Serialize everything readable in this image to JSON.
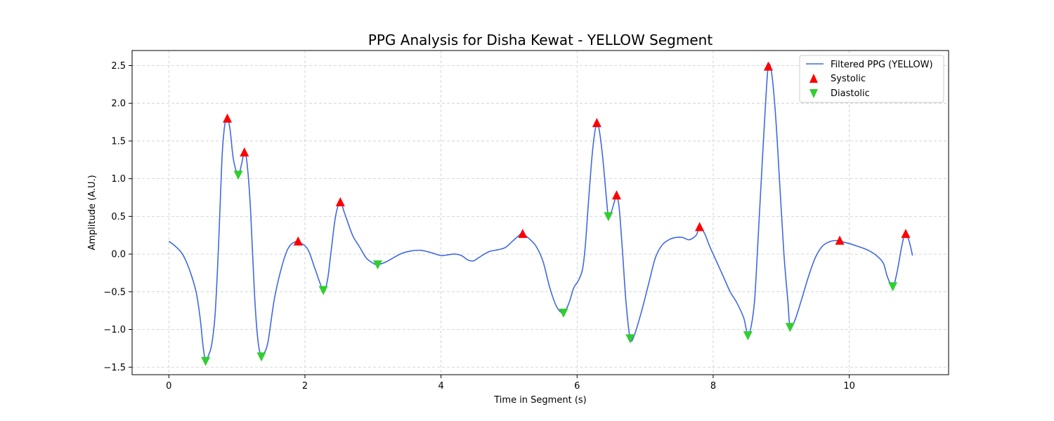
{
  "chart_data": {
    "type": "line",
    "title": "PPG Analysis for Disha Kewat - YELLOW Segment",
    "xlabel": "Time in Segment (s)",
    "ylabel": "Amplitude (A.U.)",
    "xlim": [
      -0.54,
      11.46
    ],
    "ylim": [
      -1.6,
      2.7
    ],
    "xticks": [
      0,
      2,
      4,
      6,
      8,
      10
    ],
    "yticks": [
      -1.5,
      -1.0,
      -0.5,
      0.0,
      0.5,
      1.0,
      1.5,
      2.0,
      2.5
    ],
    "xtick_labels": [
      "0",
      "2",
      "4",
      "6",
      "8",
      "10"
    ],
    "ytick_labels": [
      "−1.5",
      "−1.0",
      "−0.5",
      "0.0",
      "0.5",
      "1.0",
      "1.5",
      "2.0",
      "2.5"
    ],
    "grid": true,
    "legend_position": "top-right",
    "colors": {
      "line": "#4169e1",
      "systolic": "#ff0000",
      "diastolic": "#32cd32"
    },
    "series": [
      {
        "name": "Filtered PPG (YELLOW)",
        "kind": "line",
        "points": [
          [
            0.0,
            0.17
          ],
          [
            0.1,
            0.1
          ],
          [
            0.2,
            0.0
          ],
          [
            0.3,
            -0.2
          ],
          [
            0.4,
            -0.5
          ],
          [
            0.46,
            -0.85
          ],
          [
            0.5,
            -1.2
          ],
          [
            0.54,
            -1.42
          ],
          [
            0.58,
            -1.35
          ],
          [
            0.63,
            -1.2
          ],
          [
            0.68,
            -0.8
          ],
          [
            0.73,
            0.1
          ],
          [
            0.78,
            1.25
          ],
          [
            0.82,
            1.7
          ],
          [
            0.86,
            1.8
          ],
          [
            0.9,
            1.65
          ],
          [
            0.95,
            1.25
          ],
          [
            1.02,
            1.05
          ],
          [
            1.07,
            1.2
          ],
          [
            1.11,
            1.35
          ],
          [
            1.15,
            1.2
          ],
          [
            1.2,
            0.6
          ],
          [
            1.26,
            -0.55
          ],
          [
            1.31,
            -1.15
          ],
          [
            1.36,
            -1.36
          ],
          [
            1.41,
            -1.3
          ],
          [
            1.46,
            -1.15
          ],
          [
            1.55,
            -0.6
          ],
          [
            1.65,
            -0.2
          ],
          [
            1.75,
            0.07
          ],
          [
            1.85,
            0.16
          ],
          [
            1.95,
            0.14
          ],
          [
            2.05,
            0.05
          ],
          [
            2.15,
            -0.2
          ],
          [
            2.27,
            -0.48
          ],
          [
            2.33,
            -0.35
          ],
          [
            2.38,
            0.0
          ],
          [
            2.45,
            0.5
          ],
          [
            2.52,
            0.69
          ],
          [
            2.58,
            0.55
          ],
          [
            2.7,
            0.25
          ],
          [
            2.8,
            0.1
          ],
          [
            2.9,
            -0.05
          ],
          [
            3.0,
            -0.12
          ],
          [
            3.07,
            -0.14
          ],
          [
            3.2,
            -0.1
          ],
          [
            3.4,
            0.0
          ],
          [
            3.55,
            0.04
          ],
          [
            3.7,
            0.05
          ],
          [
            3.85,
            0.02
          ],
          [
            4.0,
            -0.02
          ],
          [
            4.1,
            -0.01
          ],
          [
            4.2,
            0.0
          ],
          [
            4.3,
            -0.02
          ],
          [
            4.4,
            -0.08
          ],
          [
            4.48,
            -0.09
          ],
          [
            4.55,
            -0.05
          ],
          [
            4.7,
            0.03
          ],
          [
            4.85,
            0.06
          ],
          [
            4.95,
            0.09
          ],
          [
            5.05,
            0.17
          ],
          [
            5.15,
            0.25
          ],
          [
            5.2,
            0.27
          ],
          [
            5.3,
            0.2
          ],
          [
            5.4,
            0.1
          ],
          [
            5.5,
            -0.1
          ],
          [
            5.6,
            -0.45
          ],
          [
            5.7,
            -0.7
          ],
          [
            5.8,
            -0.78
          ],
          [
            5.88,
            -0.65
          ],
          [
            5.95,
            -0.45
          ],
          [
            6.02,
            -0.35
          ],
          [
            6.08,
            -0.2
          ],
          [
            6.12,
            0.1
          ],
          [
            6.16,
            0.6
          ],
          [
            6.21,
            1.2
          ],
          [
            6.25,
            1.55
          ],
          [
            6.29,
            1.74
          ],
          [
            6.33,
            1.62
          ],
          [
            6.38,
            1.25
          ],
          [
            6.43,
            0.75
          ],
          [
            6.46,
            0.5
          ],
          [
            6.5,
            0.55
          ],
          [
            6.55,
            0.7
          ],
          [
            6.58,
            0.78
          ],
          [
            6.62,
            0.6
          ],
          [
            6.67,
            0.0
          ],
          [
            6.72,
            -0.65
          ],
          [
            6.78,
            -1.12
          ],
          [
            6.84,
            -1.08
          ],
          [
            6.95,
            -0.75
          ],
          [
            7.05,
            -0.4
          ],
          [
            7.15,
            -0.05
          ],
          [
            7.25,
            0.12
          ],
          [
            7.35,
            0.19
          ],
          [
            7.45,
            0.22
          ],
          [
            7.55,
            0.22
          ],
          [
            7.65,
            0.19
          ],
          [
            7.75,
            0.25
          ],
          [
            7.8,
            0.35
          ],
          [
            7.87,
            0.28
          ],
          [
            7.95,
            0.1
          ],
          [
            8.05,
            -0.1
          ],
          [
            8.15,
            -0.3
          ],
          [
            8.25,
            -0.5
          ],
          [
            8.35,
            -0.65
          ],
          [
            8.45,
            -0.85
          ],
          [
            8.51,
            -1.08
          ],
          [
            8.56,
            -0.95
          ],
          [
            8.61,
            -0.6
          ],
          [
            8.66,
            0.2
          ],
          [
            8.72,
            1.2
          ],
          [
            8.77,
            2.0
          ],
          [
            8.81,
            2.49
          ],
          [
            8.86,
            2.4
          ],
          [
            8.92,
            1.8
          ],
          [
            8.98,
            0.9
          ],
          [
            9.04,
            0.0
          ],
          [
            9.1,
            -0.65
          ],
          [
            9.13,
            -0.97
          ],
          [
            9.2,
            -0.88
          ],
          [
            9.3,
            -0.6
          ],
          [
            9.4,
            -0.3
          ],
          [
            9.5,
            -0.05
          ],
          [
            9.6,
            0.1
          ],
          [
            9.7,
            0.16
          ],
          [
            9.8,
            0.18
          ],
          [
            9.86,
            0.17
          ],
          [
            10.0,
            0.14
          ],
          [
            10.1,
            0.11
          ],
          [
            10.2,
            0.08
          ],
          [
            10.3,
            0.04
          ],
          [
            10.4,
            -0.02
          ],
          [
            10.5,
            -0.12
          ],
          [
            10.56,
            -0.3
          ],
          [
            10.64,
            -0.43
          ],
          [
            10.7,
            -0.25
          ],
          [
            10.76,
            0.05
          ],
          [
            10.8,
            0.22
          ],
          [
            10.83,
            0.27
          ],
          [
            10.87,
            0.2
          ],
          [
            10.9,
            0.1
          ],
          [
            10.93,
            -0.02
          ]
        ]
      },
      {
        "name": "Systolic",
        "kind": "marker-up",
        "points": [
          [
            0.86,
            1.8
          ],
          [
            1.11,
            1.35
          ],
          [
            1.9,
            0.17
          ],
          [
            2.52,
            0.69
          ],
          [
            5.2,
            0.27
          ],
          [
            6.29,
            1.74
          ],
          [
            6.58,
            0.78
          ],
          [
            7.8,
            0.36
          ],
          [
            8.81,
            2.49
          ],
          [
            9.86,
            0.18
          ],
          [
            10.83,
            0.27
          ]
        ]
      },
      {
        "name": "Diastolic",
        "kind": "marker-down",
        "points": [
          [
            0.54,
            -1.42
          ],
          [
            1.02,
            1.05
          ],
          [
            1.36,
            -1.36
          ],
          [
            2.27,
            -0.48
          ],
          [
            3.07,
            -0.14
          ],
          [
            5.8,
            -0.78
          ],
          [
            6.46,
            0.5
          ],
          [
            6.78,
            -1.12
          ],
          [
            8.51,
            -1.08
          ],
          [
            9.13,
            -0.97
          ],
          [
            10.64,
            -0.43
          ]
        ]
      }
    ]
  }
}
